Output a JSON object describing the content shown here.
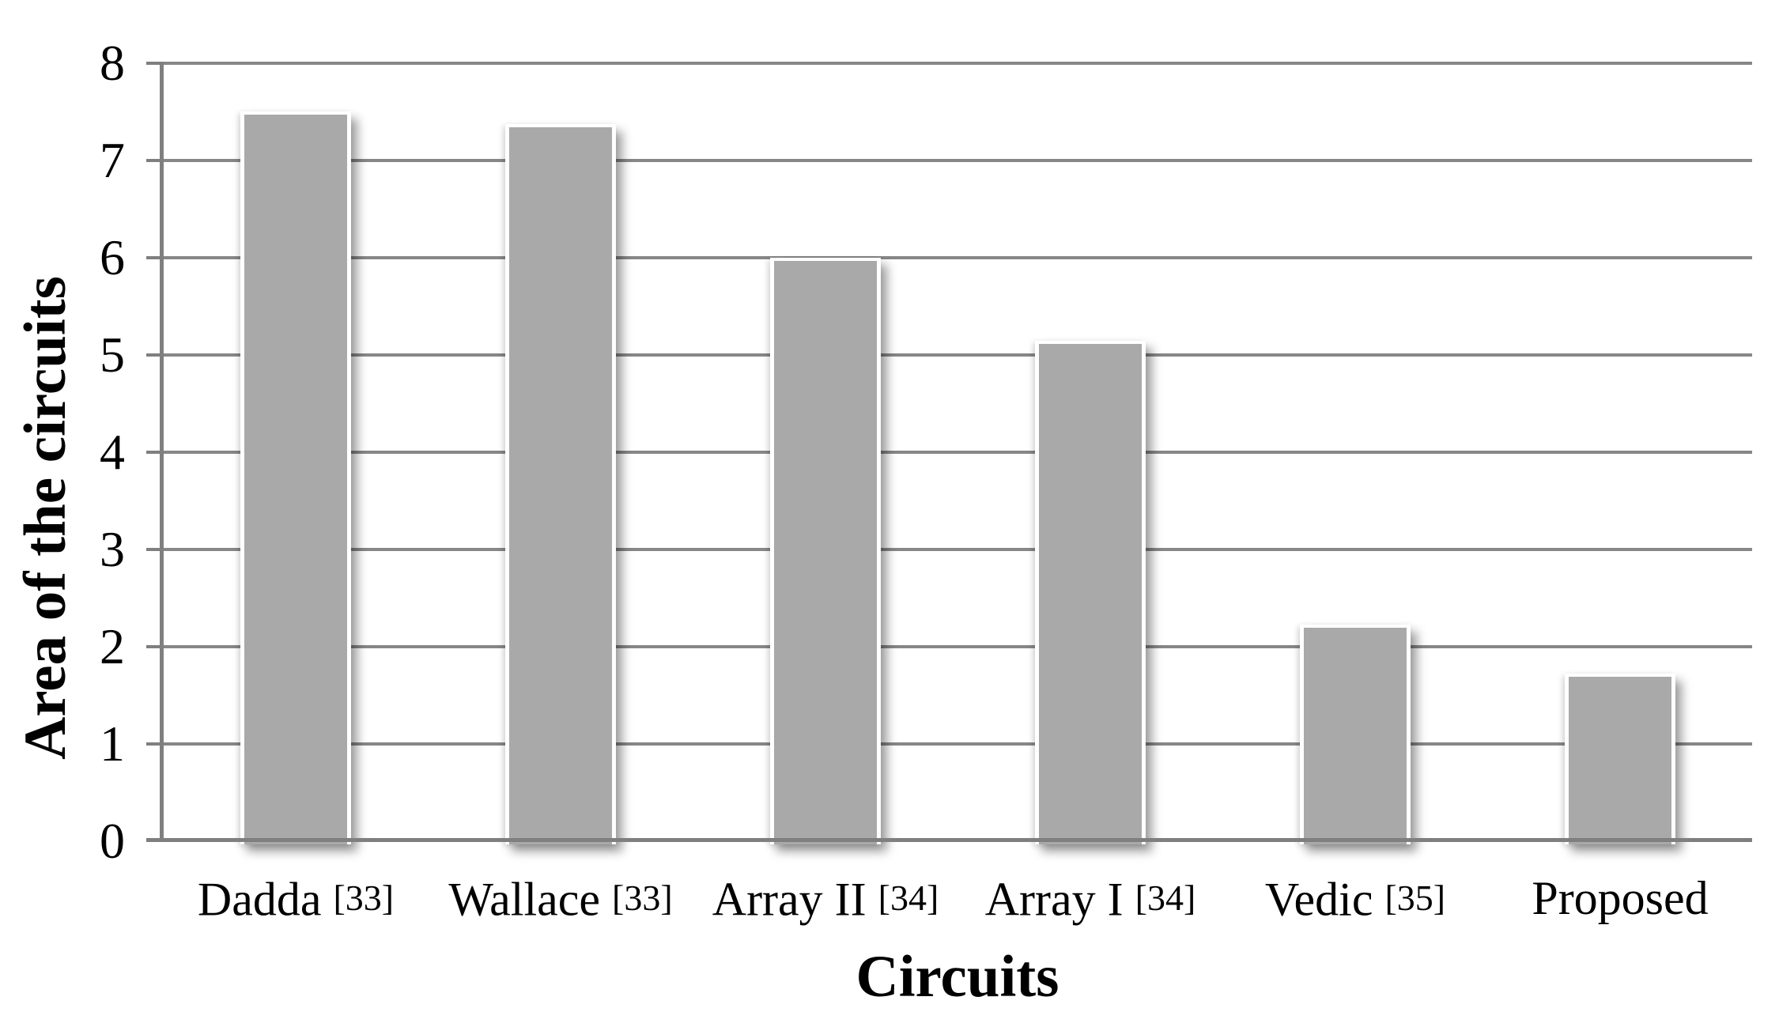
{
  "chart_data": {
    "type": "bar",
    "title": "",
    "xlabel": "Circuits",
    "ylabel": "Area of the circuits",
    "categories": [
      "Dadda [33]",
      "Wallace [33]",
      "Array II [34]",
      "Array I [34]",
      "Vedic [35]",
      "Proposed"
    ],
    "category_parts": [
      {
        "name": "Dadda",
        "ref": "[33]"
      },
      {
        "name": "Wallace",
        "ref": "[33]"
      },
      {
        "name": "Array II",
        "ref": "[34]"
      },
      {
        "name": "Array I",
        "ref": "[34]"
      },
      {
        "name": "Vedic",
        "ref": "[35]"
      },
      {
        "name": "Proposed",
        "ref": ""
      }
    ],
    "series": [
      {
        "name": "Area of the circuits",
        "values": [
          7.5,
          7.37,
          6.0,
          5.15,
          2.23,
          1.72
        ]
      }
    ],
    "values": [
      7.5,
      7.37,
      6.0,
      5.15,
      2.23,
      1.72
    ],
    "ylim": [
      0,
      8
    ],
    "yticks": [
      0,
      1,
      2,
      3,
      4,
      5,
      6,
      7,
      8
    ],
    "grid": "horizontal",
    "legend_position": "none",
    "bar_color": "#a9a9a9",
    "grid_color": "#878787",
    "axis_color": "#7f7f7f",
    "text_color": "#000000"
  }
}
